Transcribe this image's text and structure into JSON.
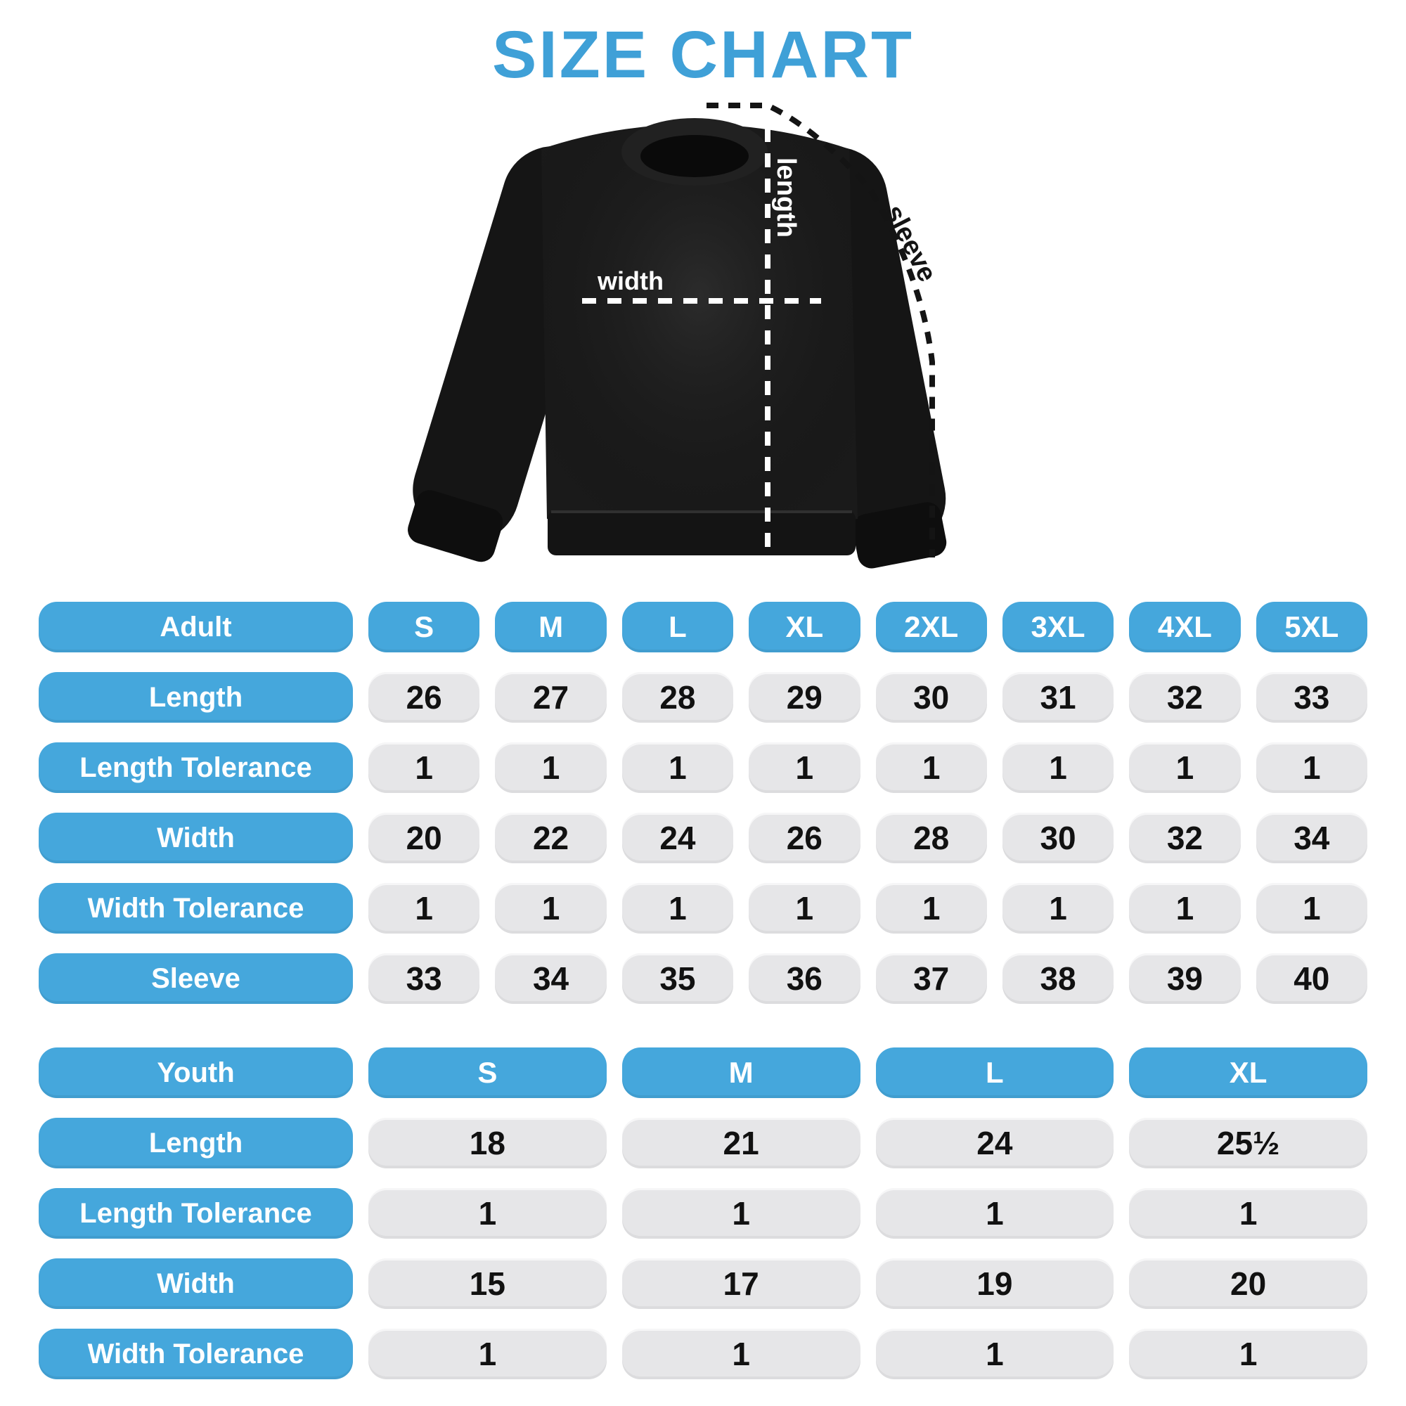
{
  "title": "SIZE CHART",
  "colors": {
    "title_blue": "#3FA0D7",
    "accent_blue": "#45A7DC",
    "cell_gray": "#E6E6E8",
    "shirt_black": "#1A1A1A"
  },
  "diagram": {
    "length_label": "length",
    "width_label": "width",
    "sleeve_label": "sleeve"
  },
  "adult": {
    "header": {
      "label": "Adult",
      "sizes": [
        "S",
        "M",
        "L",
        "XL",
        "2XL",
        "3XL",
        "4XL",
        "5XL"
      ]
    },
    "rows": [
      {
        "label": "Length",
        "values": [
          "26",
          "27",
          "28",
          "29",
          "30",
          "31",
          "32",
          "33"
        ]
      },
      {
        "label": "Length Tolerance",
        "values": [
          "1",
          "1",
          "1",
          "1",
          "1",
          "1",
          "1",
          "1"
        ]
      },
      {
        "label": "Width",
        "values": [
          "20",
          "22",
          "24",
          "26",
          "28",
          "30",
          "32",
          "34"
        ]
      },
      {
        "label": "Width Tolerance",
        "values": [
          "1",
          "1",
          "1",
          "1",
          "1",
          "1",
          "1",
          "1"
        ]
      },
      {
        "label": "Sleeve",
        "values": [
          "33",
          "34",
          "35",
          "36",
          "37",
          "38",
          "39",
          "40"
        ]
      }
    ]
  },
  "youth": {
    "header": {
      "label": "Youth",
      "sizes": [
        "S",
        "M",
        "L",
        "XL"
      ]
    },
    "rows": [
      {
        "label": "Length",
        "values": [
          "18",
          "21",
          "24",
          "25½"
        ]
      },
      {
        "label": "Length Tolerance",
        "values": [
          "1",
          "1",
          "1",
          "1"
        ]
      },
      {
        "label": "Width",
        "values": [
          "15",
          "17",
          "19",
          "20"
        ]
      },
      {
        "label": "Width Tolerance",
        "values": [
          "1",
          "1",
          "1",
          "1"
        ]
      }
    ]
  }
}
